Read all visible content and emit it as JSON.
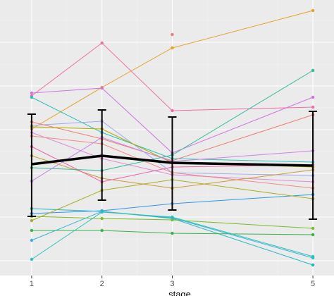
{
  "chart_data": {
    "type": "line",
    "xlabel": "stage",
    "ylabel": "",
    "x": [
      1,
      2,
      3,
      5
    ],
    "x_tick_labels": [
      "1",
      "2",
      "3",
      "5"
    ],
    "xlim": [
      0.55,
      5.3
    ],
    "ylim": [
      0,
      420
    ],
    "y_axis_direction": "down",
    "grid": true,
    "legend": "none",
    "panel_color": "#ebebeb",
    "series": [
      {
        "color": "#e6a12a",
        "values": [
          183,
          124,
          68,
          15
        ]
      },
      {
        "color": "#ee6fa8",
        "values": [
          136,
          61,
          157,
          152
        ]
      },
      {
        "color": "#cf73e0",
        "values": [
          132,
          125,
          217,
          138
        ]
      },
      {
        "color": "#2ec0b8",
        "values": [
          138,
          188,
          225,
          230
        ]
      },
      {
        "color": "#a0a8f0",
        "values": [
          178,
          172,
          245,
          249
        ]
      },
      {
        "color": "#f07c70",
        "values": [
          173,
          197,
          228,
          163
        ]
      },
      {
        "color": "#b0a800",
        "values": [
          180,
          183,
          231,
          237
        ]
      },
      {
        "color": "#dd8bd6",
        "values": [
          188,
          225,
          248,
          258
        ]
      },
      {
        "color": "#f08a86",
        "values": [
          193,
          204,
          245,
          267
        ]
      },
      {
        "color": "#20b5c0",
        "values": [
          296,
          300,
          310,
          376
        ]
      },
      {
        "color": "#2e96f0",
        "values": [
          303,
          299,
          289,
          276
        ]
      },
      {
        "color": "#a8ae1e",
        "values": [
          313,
          270,
          255,
          282
        ]
      },
      {
        "color": "#79bb2a",
        "values": [
          307,
          310,
          312,
          324
        ]
      },
      {
        "color": "#3ab34a",
        "values": [
          327,
          327,
          331,
          333
        ]
      },
      {
        "color": "#36b4da",
        "values": [
          341,
          300,
          309,
          366
        ]
      },
      {
        "color": "#2ec0b8",
        "values": [
          368,
          301,
          308,
          364
        ]
      },
      {
        "color": "#cc9a38",
        "values": [
          221,
          253,
          267,
          241
        ]
      },
      {
        "color": "#f061ab",
        "values": [
          208,
          258,
          237,
          234
        ]
      },
      {
        "color": "#34b89a",
        "values": [
          238,
          242,
          220,
          100
        ]
      },
      {
        "color": "#c884e8",
        "values": [
          257,
          195,
          229,
          214
        ]
      }
    ],
    "extra_points": [
      {
        "x": 3,
        "y": 49,
        "color": "#f0806a"
      }
    ],
    "mean_series": {
      "color": "#000000",
      "values": [
        233,
        221,
        231,
        235
      ]
    },
    "error_bars": [
      {
        "x": 1,
        "low": 162,
        "high": 307
      },
      {
        "x": 2,
        "low": 156,
        "high": 284
      },
      {
        "x": 3,
        "low": 166,
        "high": 298
      },
      {
        "x": 5,
        "low": 158,
        "high": 311
      }
    ]
  }
}
